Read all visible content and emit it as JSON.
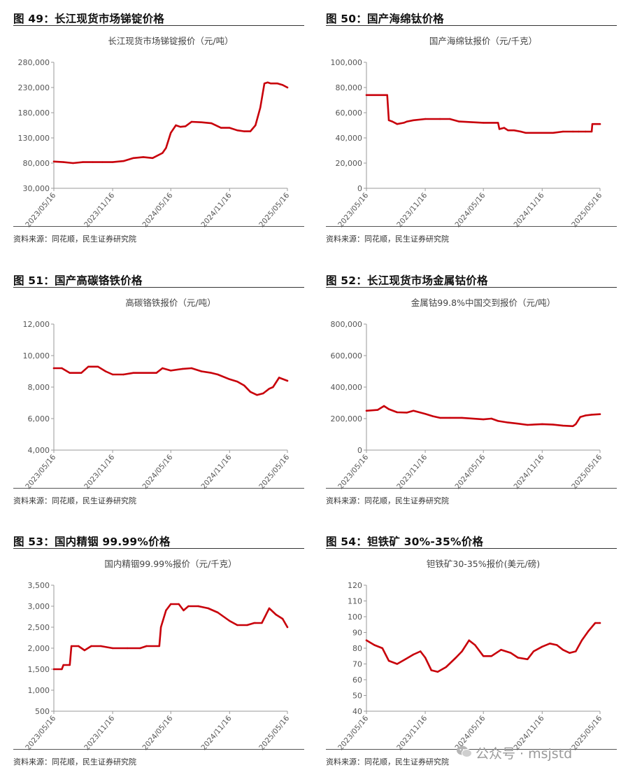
{
  "page": {
    "watermark": "公众号 · msjstd"
  },
  "panels": [
    {
      "fig_title": "图 49：长江现货市场锑锭价格",
      "source": "资料来源：同花顺，民生证券研究院",
      "color": "#c8000a",
      "chart_data": {
        "type": "line",
        "title": "长江现货市场锑锭报价（元/吨）",
        "yticks": [
          "280,000",
          "230,000",
          "180,000",
          "130,000",
          "80,000",
          "30,000"
        ],
        "ylim": [
          30000,
          280000
        ],
        "xticks": [
          "2023/05/16",
          "2023/11/16",
          "2024/05/16",
          "2024/11/16",
          "2025/05/16"
        ],
        "xlim": [
          "2023/05/16",
          "2025/05/16"
        ],
        "grid": false,
        "x": [
          "2023/05/16",
          "2023/06/15",
          "2023/07/15",
          "2023/08/15",
          "2023/09/15",
          "2023/10/15",
          "2023/11/16",
          "2023/12/20",
          "2024/01/20",
          "2024/02/20",
          "2024/03/20",
          "2024/04/20",
          "2024/05/01",
          "2024/05/16",
          "2024/06/01",
          "2024/06/15",
          "2024/07/01",
          "2024/07/20",
          "2024/08/20",
          "2024/09/20",
          "2024/10/20",
          "2024/11/16",
          "2024/12/10",
          "2025/01/01",
          "2025/01/20",
          "2025/02/05",
          "2025/02/20",
          "2025/03/05",
          "2025/03/15",
          "2025/03/25",
          "2025/04/15",
          "2025/05/01",
          "2025/05/16"
        ],
        "values": [
          83000,
          82000,
          80000,
          82000,
          82000,
          82000,
          82000,
          84000,
          90000,
          92000,
          90000,
          100000,
          110000,
          140000,
          155000,
          152000,
          153000,
          162000,
          161000,
          159000,
          150000,
          150000,
          145000,
          143000,
          143000,
          155000,
          190000,
          238000,
          240000,
          238000,
          238000,
          235000,
          230000
        ]
      }
    },
    {
      "fig_title": "图 50：国产海绵钛价格",
      "source": "资料来源：同花顺，民生证券研究院",
      "color": "#c8000a",
      "chart_data": {
        "type": "line",
        "title": "国产海绵钛报价（元/千克）",
        "yticks": [
          "100,000",
          "80,000",
          "60,000",
          "40,000",
          "20,000",
          "0"
        ],
        "ylim": [
          0,
          100000
        ],
        "xticks": [
          "2023/05/16",
          "2023/11/16",
          "2024/05/16",
          "2024/11/16",
          "2025/05/16"
        ],
        "xlim": [
          "2023/05/16",
          "2025/05/16"
        ],
        "grid": false,
        "x": [
          "2023/05/16",
          "2023/07/20",
          "2023/07/25",
          "2023/08/05",
          "2023/08/20",
          "2023/09/10",
          "2023/09/20",
          "2023/10/10",
          "2023/11/16",
          "2024/01/01",
          "2024/02/01",
          "2024/03/01",
          "2024/05/16",
          "2024/07/01",
          "2024/07/05",
          "2024/07/20",
          "2024/08/01",
          "2024/08/20",
          "2024/09/10",
          "2024/09/25",
          "2024/11/16",
          "2024/12/20",
          "2025/01/20",
          "2025/02/20",
          "2025/03/10",
          "2025/04/01",
          "2025/04/20",
          "2025/04/22",
          "2025/05/16"
        ],
        "values": [
          74000,
          74000,
          54000,
          53000,
          51000,
          52000,
          53000,
          54000,
          55000,
          55000,
          55000,
          53000,
          52000,
          52000,
          47000,
          48000,
          46000,
          46000,
          45000,
          44000,
          44000,
          44000,
          45000,
          45000,
          45000,
          45000,
          45000,
          51000,
          51000
        ]
      }
    },
    {
      "fig_title": "图 51：国产高碳铬铁价格",
      "source": "资料来源：同花顺，民生证券研究院",
      "color": "#c8000a",
      "chart_data": {
        "type": "line",
        "title": "高碳铬铁报价（元/吨）",
        "yticks": [
          "12,000",
          "10,000",
          "8,000",
          "6,000",
          "4,000"
        ],
        "ylim": [
          4000,
          12000
        ],
        "xticks": [
          "2023/05/16",
          "2023/11/16",
          "2024/05/16",
          "2024/11/16",
          "2025/05/16"
        ],
        "xlim": [
          "2023/05/16",
          "2025/05/16"
        ],
        "grid": false,
        "x": [
          "2023/05/16",
          "2023/06/10",
          "2023/07/05",
          "2023/08/10",
          "2023/09/01",
          "2023/10/01",
          "2023/10/25",
          "2023/11/16",
          "2023/12/20",
          "2024/01/20",
          "2024/02/20",
          "2024/03/10",
          "2024/04/01",
          "2024/04/20",
          "2024/05/16",
          "2024/06/20",
          "2024/07/20",
          "2024/08/20",
          "2024/09/20",
          "2024/10/10",
          "2024/11/16",
          "2024/12/10",
          "2025/01/01",
          "2025/01/20",
          "2025/02/10",
          "2025/03/01",
          "2025/03/20",
          "2025/04/01",
          "2025/04/20",
          "2025/05/16"
        ],
        "values": [
          9200,
          9200,
          8900,
          8900,
          9300,
          9300,
          9000,
          8800,
          8800,
          8900,
          8900,
          8900,
          8900,
          9200,
          9050,
          9150,
          9200,
          9000,
          8900,
          8800,
          8500,
          8350,
          8100,
          7700,
          7500,
          7600,
          7900,
          8000,
          8600,
          8400
        ]
      }
    },
    {
      "fig_title": "图 52：长江现货市场金属钴价格",
      "source": "资料来源：同花顺，民生证券研究院",
      "color": "#c8000a",
      "chart_data": {
        "type": "line",
        "title": "金属钴99.8%中国交到报价（元/吨）",
        "yticks": [
          "800,000",
          "600,000",
          "400,000",
          "200,000",
          "0"
        ],
        "ylim": [
          0,
          800000
        ],
        "xticks": [
          "2023/05/16",
          "2023/11/16",
          "2024/05/16",
          "2024/11/16",
          "2025/05/16"
        ],
        "xlim": [
          "2023/05/16",
          "2025/05/16"
        ],
        "grid": false,
        "x": [
          "2023/05/16",
          "2023/06/20",
          "2023/07/10",
          "2023/07/25",
          "2023/08/20",
          "2023/09/20",
          "2023/10/10",
          "2023/11/16",
          "2023/12/10",
          "2024/01/01",
          "2024/02/01",
          "2024/03/10",
          "2024/05/16",
          "2024/06/10",
          "2024/07/01",
          "2024/08/01",
          "2024/09/01",
          "2024/10/01",
          "2024/11/16",
          "2024/12/20",
          "2025/01/20",
          "2025/02/20",
          "2025/03/01",
          "2025/03/15",
          "2025/04/01",
          "2025/04/20",
          "2025/05/16"
        ],
        "values": [
          250000,
          255000,
          280000,
          260000,
          240000,
          238000,
          250000,
          230000,
          215000,
          205000,
          205000,
          205000,
          195000,
          200000,
          185000,
          175000,
          168000,
          160000,
          165000,
          162000,
          155000,
          152000,
          165000,
          210000,
          220000,
          225000,
          228000
        ]
      }
    },
    {
      "fig_title": "图 53：国内精铟 99.99%价格",
      "source": "资料来源：同花顺，民生证券研究院",
      "color": "#c8000a",
      "chart_data": {
        "type": "line",
        "title": "国内精铟99.99%报价（元/千克）",
        "yticks": [
          "3,500",
          "3,000",
          "2,500",
          "2,000",
          "1,500",
          "1,000",
          "500"
        ],
        "ylim": [
          500,
          3500
        ],
        "xticks": [
          "2023/05/16",
          "2023/11/16",
          "2024/05/16",
          "2024/11/16",
          "2025/05/16"
        ],
        "xlim": [
          "2023/05/16",
          "2025/05/16"
        ],
        "grid": false,
        "x": [
          "2023/05/16",
          "2023/06/10",
          "2023/06/15",
          "2023/07/05",
          "2023/07/10",
          "2023/08/01",
          "2023/08/20",
          "2023/09/10",
          "2023/10/10",
          "2023/11/16",
          "2024/01/01",
          "2024/02/10",
          "2024/03/01",
          "2024/04/10",
          "2024/04/15",
          "2024/05/01",
          "2024/05/16",
          "2024/06/10",
          "2024/06/25",
          "2024/07/10",
          "2024/08/10",
          "2024/09/10",
          "2024/10/10",
          "2024/11/16",
          "2024/12/10",
          "2025/01/10",
          "2025/02/01",
          "2025/02/05",
          "2025/02/25",
          "2025/03/20",
          "2025/04/10",
          "2025/05/01",
          "2025/05/16"
        ],
        "values": [
          1500,
          1500,
          1600,
          1600,
          2050,
          2050,
          1950,
          2050,
          2050,
          2000,
          2000,
          2000,
          2050,
          2050,
          2500,
          2900,
          3050,
          3050,
          2900,
          3000,
          3000,
          2950,
          2850,
          2650,
          2550,
          2550,
          2600,
          2600,
          2600,
          2950,
          2800,
          2700,
          2500
        ]
      }
    },
    {
      "fig_title": "图 54：钽铁矿 30%-35%价格",
      "source": "资料来源：同花顺，民生证券研究院",
      "color": "#c8000a",
      "chart_data": {
        "type": "line",
        "title": "钽铁矿30-35%报价(美元/磅)",
        "yticks": [
          "120",
          "110",
          "100",
          "90",
          "80",
          "70",
          "60",
          "50",
          "40"
        ],
        "ylim": [
          40,
          120
        ],
        "xticks": [
          "2023/05/16",
          "2023/11/16",
          "2024/05/16",
          "2024/11/16",
          "2025/05/16"
        ],
        "xlim": [
          "2023/05/16",
          "2025/05/16"
        ],
        "grid": false,
        "x": [
          "2023/05/16",
          "2023/06/10",
          "2023/07/05",
          "2023/07/25",
          "2023/08/20",
          "2023/09/15",
          "2023/10/10",
          "2023/11/01",
          "2023/11/16",
          "2023/12/05",
          "2023/12/25",
          "2024/01/20",
          "2024/02/20",
          "2024/03/10",
          "2024/04/01",
          "2024/04/20",
          "2024/05/16",
          "2024/06/10",
          "2024/07/10",
          "2024/08/10",
          "2024/09/01",
          "2024/10/01",
          "2024/10/20",
          "2024/11/16",
          "2024/12/10",
          "2025/01/01",
          "2025/01/20",
          "2025/02/10",
          "2025/03/01",
          "2025/03/20",
          "2025/04/10",
          "2025/05/01",
          "2025/05/16"
        ],
        "values": [
          85,
          82,
          80,
          72,
          70,
          73,
          76,
          78,
          74,
          66,
          65,
          68,
          74,
          78,
          85,
          82,
          75,
          75,
          79,
          77,
          74,
          73,
          78,
          81,
          83,
          82,
          79,
          77,
          78,
          85,
          91,
          96,
          96
        ]
      }
    }
  ]
}
